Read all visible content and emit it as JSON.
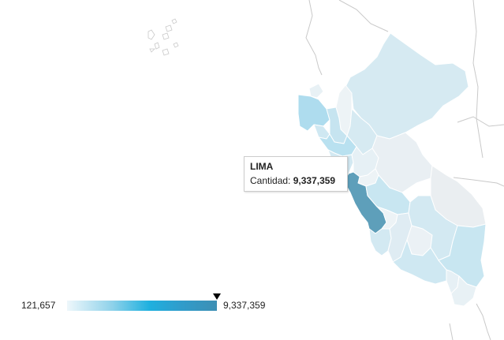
{
  "map": {
    "regions": [
      {
        "name": "LORETO",
        "fill": "#d6eaf2"
      },
      {
        "name": "TUMBES",
        "fill": "#e8f1f5"
      },
      {
        "name": "PIURA",
        "fill": "#aedcee"
      },
      {
        "name": "AMAZONAS",
        "fill": "#edf3f6"
      },
      {
        "name": "CAJAMARCA",
        "fill": "#c6e4f0"
      },
      {
        "name": "LAMBAYEQUE",
        "fill": "#cfe8f2"
      },
      {
        "name": "SAN MARTIN",
        "fill": "#d6eaf2"
      },
      {
        "name": "LA LIBERTAD",
        "fill": "#b9e1f0"
      },
      {
        "name": "ANCASH",
        "fill": "#d3e9f2"
      },
      {
        "name": "HUANUCO",
        "fill": "#e6f0f5"
      },
      {
        "name": "UCAYALI",
        "fill": "#e9eff3"
      },
      {
        "name": "PASCO",
        "fill": "#edf3f6"
      },
      {
        "name": "LIMA",
        "fill": "#5e9fba"
      },
      {
        "name": "JUNIN",
        "fill": "#c8e6f1"
      },
      {
        "name": "MADRE DE DIOS",
        "fill": "#eaeef1"
      },
      {
        "name": "HUANCAVELICA",
        "fill": "#edf3f6"
      },
      {
        "name": "ICA",
        "fill": "#d3e9f2"
      },
      {
        "name": "AYACUCHO",
        "fill": "#dfecf3"
      },
      {
        "name": "APURIMAC",
        "fill": "#ebf1f5"
      },
      {
        "name": "CUSCO",
        "fill": "#d3e9f2"
      },
      {
        "name": "AREQUIPA",
        "fill": "#cfe8f2"
      },
      {
        "name": "PUNO",
        "fill": "#c8e6f1"
      },
      {
        "name": "MOQUEGUA",
        "fill": "#e6f0f5"
      },
      {
        "name": "TACNA",
        "fill": "#e8f1f5"
      }
    ]
  },
  "tooltip": {
    "title": "LIMA",
    "label": "Cantidad:",
    "value": "9,337,359"
  },
  "legend": {
    "min": "121,657",
    "max": "9,337,359"
  }
}
